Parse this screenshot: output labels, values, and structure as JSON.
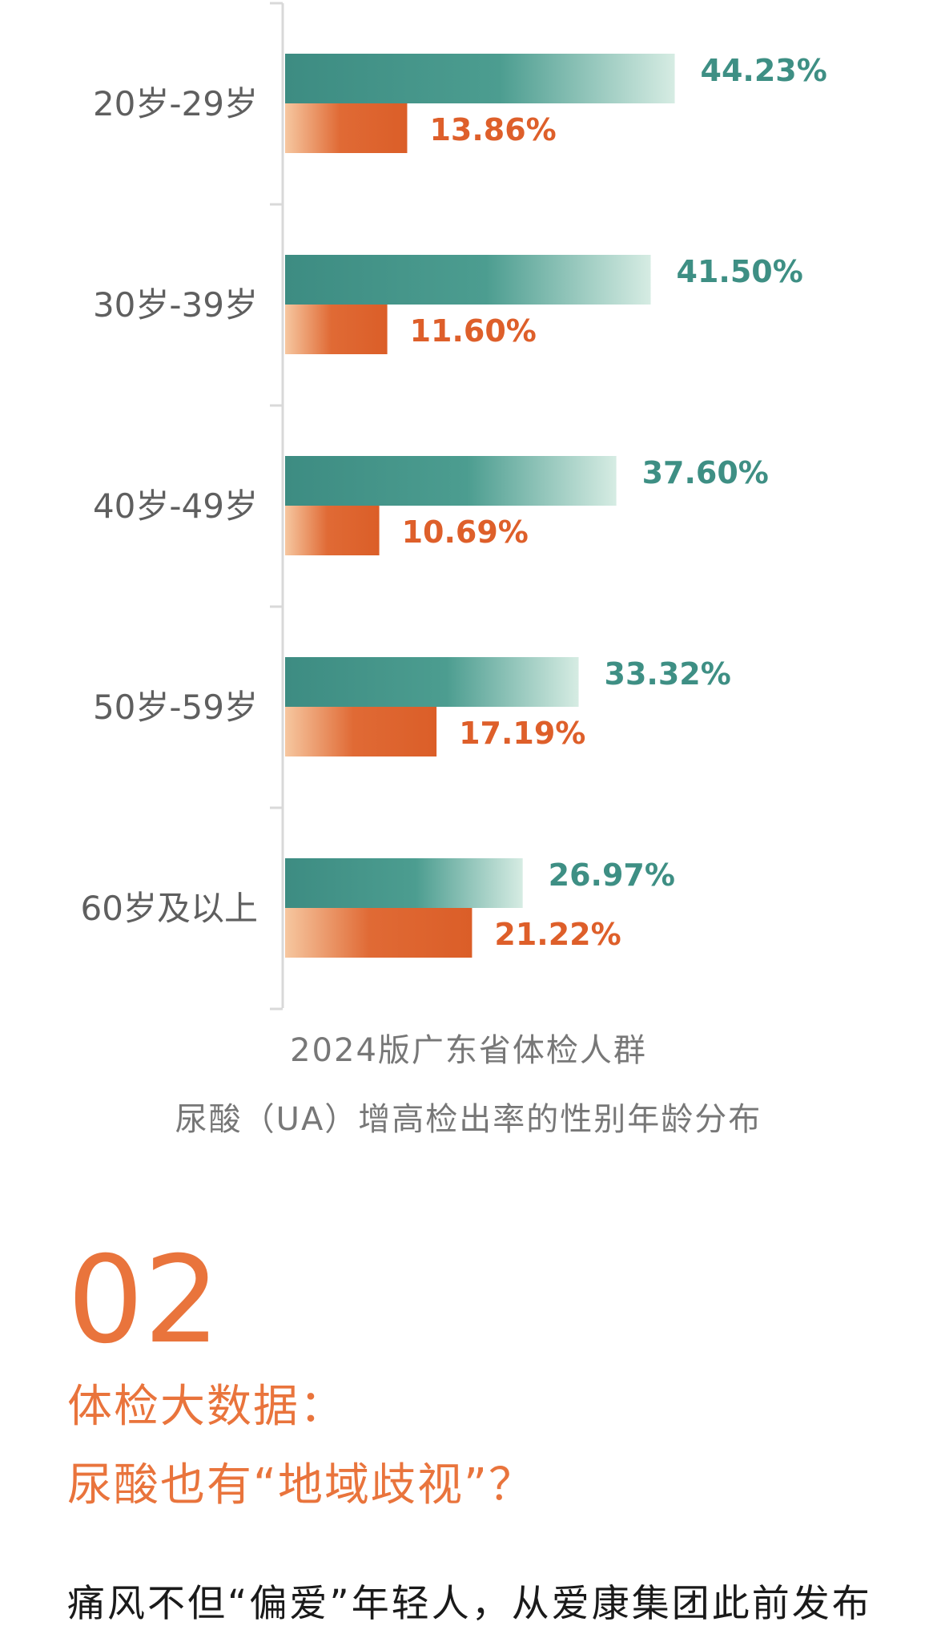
{
  "chart_data": {
    "type": "bar",
    "orientation": "horizontal",
    "categories": [
      "20岁-29岁",
      "30岁-39岁",
      "40岁-49岁",
      "50岁-59岁",
      "60岁及以上"
    ],
    "series": [
      {
        "values": [
          44.23,
          41.5,
          37.6,
          33.32,
          26.97
        ],
        "labels": [
          "44.23%",
          "41.50%",
          "37.60%",
          "33.32%",
          "26.97%"
        ],
        "color": "#3e8f84"
      },
      {
        "values": [
          13.86,
          11.6,
          10.69,
          17.19,
          21.22
        ],
        "labels": [
          "13.86%",
          "11.60%",
          "10.69%",
          "17.19%",
          "21.22%"
        ],
        "color": "#de5f2a"
      }
    ],
    "title": "",
    "xlabel": "",
    "ylabel": "",
    "xlim": [
      0,
      50
    ],
    "grid": false,
    "legend": "none"
  },
  "caption": {
    "line1": "2024版广东省体检人群",
    "line2": "尿酸（UA）增高检出率的性别年龄分布"
  },
  "section": {
    "number": "02",
    "title_line1": "体检大数据：",
    "title_line2": "尿酸也有“地域歧视”？"
  },
  "body": {
    "text": "痛风不但“偏爱”年轻人，从爱康集团此前发布"
  },
  "colors": {
    "accent": "#e9743c",
    "teal": "#3e8f84",
    "orange": "#de5f2a"
  }
}
